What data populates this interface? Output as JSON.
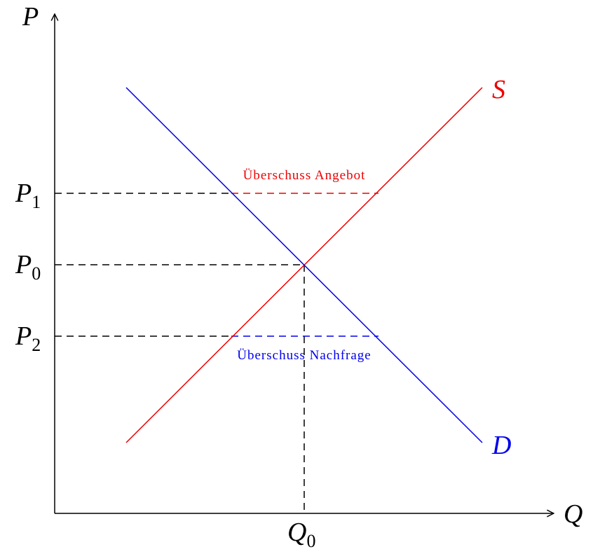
{
  "axes": {
    "y_label": "P",
    "x_label": "Q"
  },
  "curves": {
    "supply": "S",
    "demand": "D"
  },
  "prices": [
    {
      "symbol": "P",
      "index": "1"
    },
    {
      "symbol": "P",
      "index": "0"
    },
    {
      "symbol": "P",
      "index": "2"
    }
  ],
  "quantity": {
    "symbol": "Q",
    "index": "0"
  },
  "annotations": {
    "surplus": "Überschuss Angebot",
    "shortage": "Überschuss Nachfrage"
  }
}
